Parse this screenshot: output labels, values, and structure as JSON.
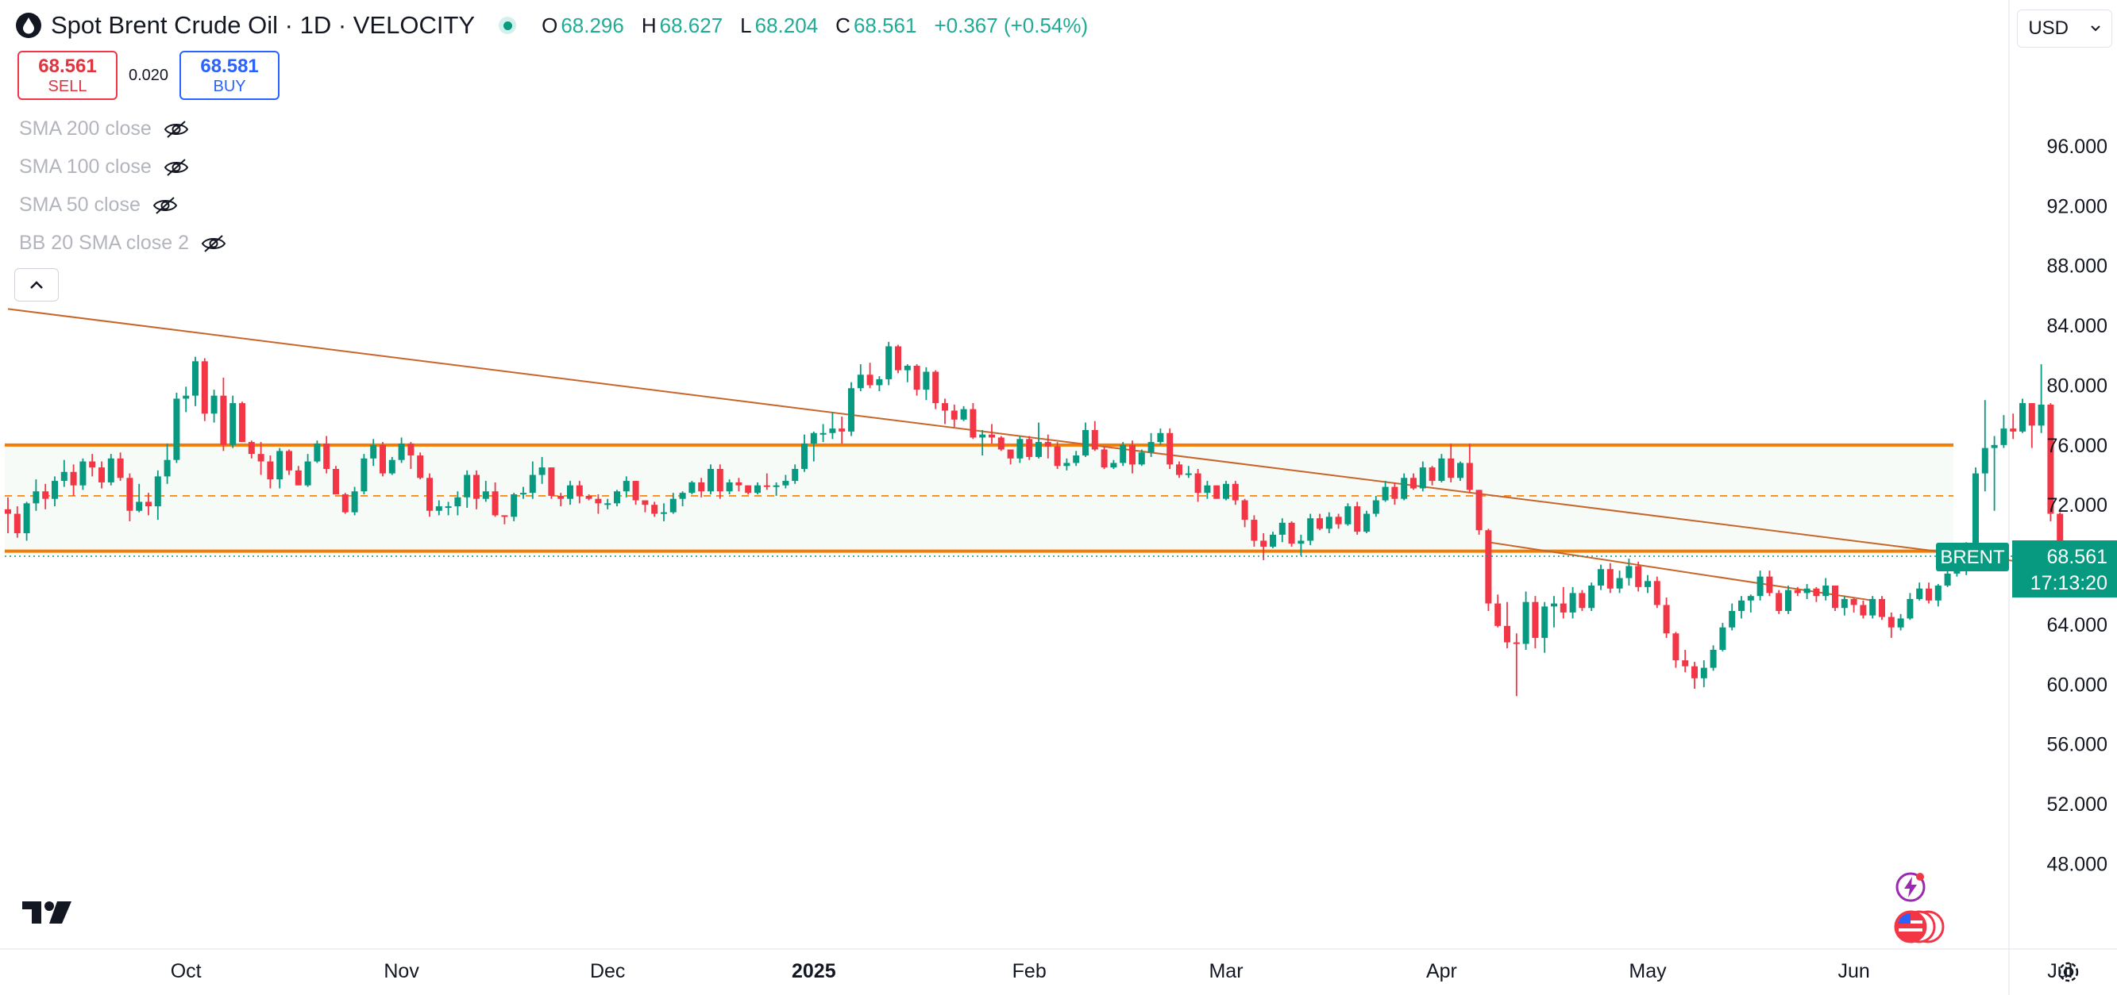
{
  "header": {
    "title": "Spot Brent Crude Oil · 1D · VELOCITY",
    "symbol_icon": "oil-drop-icon",
    "ohlc": [
      {
        "key": "O",
        "value": "68.296"
      },
      {
        "key": "H",
        "value": "68.627"
      },
      {
        "key": "L",
        "value": "68.204"
      },
      {
        "key": "C",
        "value": "68.561"
      }
    ],
    "change": "+0.367 (+0.54%)"
  },
  "trade": {
    "sell_price": "68.561",
    "sell_label": "SELL",
    "spread": "0.020",
    "buy_price": "68.581",
    "buy_label": "BUY"
  },
  "indicators": [
    "SMA 200 close",
    "SMA 100 close",
    "SMA 50 close",
    "BB 20 SMA close 2"
  ],
  "currency": "USD",
  "colors": {
    "up": "#089981",
    "down": "#f23645",
    "accent_line": "#f57c00",
    "trend_line": "#c8652a",
    "axis_text": "#131722"
  },
  "chart_data": {
    "type": "candlestick",
    "y_axis": {
      "ticks": [
        "48.000",
        "52.000",
        "56.000",
        "60.000",
        "64.000",
        "68.000",
        "72.000",
        "76.000",
        "80.000",
        "84.000",
        "88.000",
        "92.000",
        "96.000"
      ],
      "range": [
        45,
        99.5
      ]
    },
    "x_axis": {
      "ticks": [
        {
          "label": "Oct",
          "x_index": 19,
          "bold": false
        },
        {
          "label": "Nov",
          "x_index": 42,
          "bold": false
        },
        {
          "label": "Dec",
          "x_index": 64,
          "bold": false
        },
        {
          "label": "2025",
          "x_index": 86,
          "bold": true
        },
        {
          "label": "Feb",
          "x_index": 109,
          "bold": false
        },
        {
          "label": "Mar",
          "x_index": 130,
          "bold": false
        },
        {
          "label": "Apr",
          "x_index": 153,
          "bold": false
        },
        {
          "label": "May",
          "x_index": 175,
          "bold": false
        },
        {
          "label": "Jun",
          "x_index": 197,
          "bold": false
        },
        {
          "label": "Jul",
          "x_index": 219,
          "bold": false
        }
      ]
    },
    "last_price_label": {
      "symbol": "BRENT",
      "price": "68.561",
      "countdown": "17:13:20"
    },
    "horizontal_levels": [
      {
        "price": 76.0,
        "style": "solid"
      },
      {
        "price": 72.6,
        "style": "dashed"
      },
      {
        "price": 68.9,
        "style": "solid"
      }
    ],
    "trend_lines": [
      {
        "from": [
          0,
          85.1
        ],
        "to": [
          235,
          66.6
        ]
      },
      {
        "from": [
          158,
          69.5
        ],
        "to": [
          199,
          65.6
        ]
      }
    ],
    "candles": [
      [
        71.7,
        72.5,
        70.1,
        71.4
      ],
      [
        71.4,
        71.9,
        69.8,
        70.1
      ],
      [
        70.1,
        72.2,
        69.6,
        72.1
      ],
      [
        72.1,
        73.7,
        71.6,
        72.9
      ],
      [
        72.9,
        73.4,
        71.7,
        72.4
      ],
      [
        72.4,
        73.9,
        71.9,
        73.6
      ],
      [
        73.6,
        75.0,
        73.2,
        74.2
      ],
      [
        74.2,
        74.7,
        72.6,
        73.3
      ],
      [
        73.3,
        75.1,
        73.0,
        74.9
      ],
      [
        74.9,
        75.4,
        73.9,
        74.5
      ],
      [
        74.5,
        74.9,
        73.1,
        73.5
      ],
      [
        73.5,
        75.4,
        73.3,
        75.1
      ],
      [
        75.1,
        75.5,
        73.6,
        73.8
      ],
      [
        73.8,
        74.1,
        70.9,
        71.6
      ],
      [
        71.6,
        73.4,
        71.5,
        72.2
      ],
      [
        72.2,
        72.8,
        71.3,
        71.9
      ],
      [
        71.9,
        74.3,
        71.0,
        73.9
      ],
      [
        73.9,
        76.1,
        73.4,
        75.0
      ],
      [
        75.0,
        79.5,
        74.8,
        79.1
      ],
      [
        79.1,
        79.9,
        78.2,
        79.3
      ],
      [
        79.3,
        81.9,
        78.6,
        81.6
      ],
      [
        81.6,
        81.8,
        77.6,
        78.1
      ],
      [
        78.1,
        79.7,
        77.5,
        79.3
      ],
      [
        79.3,
        80.5,
        75.6,
        76.0
      ],
      [
        76.0,
        79.3,
        75.8,
        78.8
      ],
      [
        78.8,
        78.9,
        76.2,
        76.2
      ],
      [
        76.2,
        76.3,
        75.1,
        75.4
      ],
      [
        75.4,
        76.2,
        74.0,
        74.9
      ],
      [
        74.9,
        75.3,
        73.1,
        73.7
      ],
      [
        73.7,
        75.8,
        73.1,
        75.6
      ],
      [
        75.6,
        75.7,
        74.0,
        74.3
      ],
      [
        74.3,
        74.6,
        73.3,
        73.3
      ],
      [
        73.3,
        75.4,
        73.2,
        74.9
      ],
      [
        74.9,
        76.3,
        74.8,
        76.1
      ],
      [
        76.1,
        76.6,
        74.1,
        74.4
      ],
      [
        74.4,
        74.6,
        72.7,
        72.7
      ],
      [
        72.7,
        72.8,
        71.4,
        71.5
      ],
      [
        71.5,
        73.2,
        71.3,
        72.9
      ],
      [
        72.9,
        75.4,
        72.7,
        75.1
      ],
      [
        75.1,
        76.4,
        74.6,
        76.0
      ],
      [
        76.0,
        76.2,
        73.9,
        74.1
      ],
      [
        74.1,
        75.2,
        74.0,
        75.0
      ],
      [
        75.0,
        76.5,
        74.8,
        76.1
      ],
      [
        76.1,
        76.2,
        74.4,
        75.3
      ],
      [
        75.3,
        75.5,
        73.7,
        73.8
      ],
      [
        73.8,
        74.1,
        71.2,
        71.6
      ],
      [
        71.6,
        72.3,
        71.3,
        71.9
      ],
      [
        71.9,
        72.2,
        71.3,
        71.9
      ],
      [
        71.9,
        72.9,
        71.3,
        72.5
      ],
      [
        72.5,
        74.3,
        71.8,
        74.0
      ],
      [
        74.0,
        74.3,
        71.7,
        72.4
      ],
      [
        72.4,
        73.6,
        72.2,
        72.9
      ],
      [
        72.9,
        73.5,
        71.2,
        71.3
      ],
      [
        71.3,
        71.3,
        70.7,
        71.2
      ],
      [
        71.2,
        72.8,
        70.9,
        72.7
      ],
      [
        72.7,
        73.2,
        72.4,
        72.8
      ],
      [
        72.8,
        74.9,
        72.4,
        74.0
      ],
      [
        74.0,
        75.2,
        73.4,
        74.5
      ],
      [
        74.5,
        74.5,
        72.4,
        72.6
      ],
      [
        72.6,
        72.8,
        71.9,
        72.4
      ],
      [
        72.4,
        73.6,
        72.0,
        73.3
      ],
      [
        73.3,
        73.6,
        72.1,
        72.6
      ],
      [
        72.6,
        72.7,
        72.3,
        72.4
      ],
      [
        72.4,
        72.7,
        71.4,
        72.1
      ],
      [
        72.1,
        72.4,
        71.7,
        72.1
      ],
      [
        72.1,
        73.0,
        71.9,
        72.9
      ],
      [
        72.9,
        73.9,
        72.5,
        73.6
      ],
      [
        73.6,
        73.6,
        72.0,
        72.3
      ],
      [
        72.3,
        72.3,
        71.5,
        72.0
      ],
      [
        72.0,
        72.2,
        71.2,
        71.4
      ],
      [
        71.4,
        72.1,
        70.9,
        71.5
      ],
      [
        71.5,
        72.8,
        71.4,
        72.4
      ],
      [
        72.4,
        72.9,
        71.9,
        72.8
      ],
      [
        72.8,
        73.6,
        72.7,
        73.5
      ],
      [
        73.5,
        73.8,
        72.5,
        72.9
      ],
      [
        72.9,
        74.7,
        72.7,
        74.4
      ],
      [
        74.4,
        74.7,
        72.4,
        72.9
      ],
      [
        72.9,
        73.7,
        72.7,
        73.5
      ],
      [
        73.5,
        73.8,
        72.9,
        73.3
      ],
      [
        73.3,
        73.3,
        72.7,
        72.8
      ],
      [
        72.8,
        73.5,
        72.7,
        73.3
      ],
      [
        73.3,
        74.1,
        73.0,
        73.2
      ],
      [
        73.2,
        73.5,
        72.6,
        73.3
      ],
      [
        73.3,
        74.0,
        73.1,
        73.6
      ],
      [
        73.6,
        74.7,
        73.4,
        74.4
      ],
      [
        74.4,
        76.7,
        74.2,
        76.1
      ],
      [
        76.1,
        76.9,
        74.9,
        76.8
      ],
      [
        76.8,
        77.4,
        76.2,
        76.8
      ],
      [
        76.8,
        78.2,
        76.4,
        77.1
      ],
      [
        77.1,
        77.9,
        76.1,
        76.9
      ],
      [
        76.9,
        80.2,
        76.6,
        79.8
      ],
      [
        79.8,
        81.4,
        79.6,
        80.7
      ],
      [
        80.7,
        81.5,
        79.8,
        80.0
      ],
      [
        80.0,
        80.6,
        79.6,
        80.4
      ],
      [
        80.4,
        82.9,
        80.0,
        82.6
      ],
      [
        82.6,
        82.7,
        80.8,
        81.0
      ],
      [
        81.0,
        81.4,
        80.2,
        81.3
      ],
      [
        81.3,
        81.4,
        79.3,
        79.7
      ],
      [
        79.7,
        81.2,
        79.0,
        80.9
      ],
      [
        80.9,
        81.0,
        78.4,
        78.8
      ],
      [
        78.8,
        79.1,
        77.4,
        78.3
      ],
      [
        78.3,
        78.7,
        77.2,
        77.7
      ],
      [
        77.7,
        78.6,
        77.6,
        78.4
      ],
      [
        78.4,
        78.8,
        76.4,
        76.5
      ],
      [
        76.5,
        77.0,
        75.3,
        76.7
      ],
      [
        76.7,
        77.4,
        76.1,
        76.5
      ],
      [
        76.5,
        76.6,
        75.6,
        75.7
      ],
      [
        75.7,
        75.7,
        74.7,
        75.1
      ],
      [
        75.1,
        76.6,
        74.8,
        76.4
      ],
      [
        76.4,
        76.6,
        75.0,
        75.2
      ],
      [
        75.2,
        77.5,
        75.1,
        76.2
      ],
      [
        76.2,
        76.7,
        75.1,
        75.9
      ],
      [
        75.9,
        76.2,
        74.4,
        74.6
      ],
      [
        74.6,
        75.1,
        74.3,
        74.8
      ],
      [
        74.8,
        75.6,
        74.6,
        75.3
      ],
      [
        75.3,
        77.5,
        75.2,
        77.0
      ],
      [
        77.0,
        77.6,
        75.6,
        75.7
      ],
      [
        75.7,
        75.9,
        74.4,
        74.5
      ],
      [
        74.5,
        75.0,
        74.4,
        74.8
      ],
      [
        74.8,
        76.2,
        74.6,
        76.0
      ],
      [
        76.0,
        76.3,
        74.1,
        74.7
      ],
      [
        74.7,
        75.7,
        74.6,
        75.5
      ],
      [
        75.5,
        76.8,
        75.2,
        76.2
      ],
      [
        76.2,
        77.1,
        76.0,
        76.8
      ],
      [
        76.8,
        77.1,
        74.4,
        74.7
      ],
      [
        74.7,
        74.9,
        73.8,
        74.0
      ],
      [
        74.0,
        74.6,
        73.8,
        74.1
      ],
      [
        74.1,
        74.4,
        72.2,
        72.8
      ],
      [
        72.8,
        73.6,
        72.4,
        73.3
      ],
      [
        73.3,
        73.3,
        72.4,
        72.4
      ],
      [
        72.4,
        73.6,
        72.3,
        73.4
      ],
      [
        73.4,
        73.6,
        72.0,
        72.3
      ],
      [
        72.3,
        72.4,
        70.5,
        71.0
      ],
      [
        71.0,
        71.3,
        69.2,
        69.6
      ],
      [
        69.6,
        70.1,
        68.3,
        69.2
      ],
      [
        69.2,
        70.2,
        69.1,
        70.0
      ],
      [
        70.0,
        71.1,
        69.5,
        70.8
      ],
      [
        70.8,
        70.9,
        69.2,
        69.4
      ],
      [
        69.4,
        70.0,
        68.6,
        69.6
      ],
      [
        69.6,
        71.4,
        69.3,
        71.1
      ],
      [
        71.1,
        71.4,
        70.3,
        70.4
      ],
      [
        70.4,
        71.5,
        70.1,
        71.2
      ],
      [
        71.2,
        71.4,
        70.4,
        70.7
      ],
      [
        70.7,
        72.1,
        70.6,
        71.9
      ],
      [
        71.9,
        72.2,
        70.0,
        70.2
      ],
      [
        70.2,
        71.6,
        70.1,
        71.4
      ],
      [
        71.4,
        72.6,
        71.2,
        72.3
      ],
      [
        72.3,
        73.6,
        72.2,
        73.2
      ],
      [
        73.2,
        73.5,
        72.0,
        72.4
      ],
      [
        72.4,
        74.1,
        72.3,
        73.8
      ],
      [
        73.8,
        74.1,
        73.0,
        73.1
      ],
      [
        73.1,
        74.9,
        72.9,
        74.5
      ],
      [
        74.5,
        74.6,
        73.3,
        73.6
      ],
      [
        73.6,
        75.4,
        73.5,
        75.1
      ],
      [
        75.1,
        76.1,
        73.5,
        73.8
      ],
      [
        73.8,
        74.9,
        73.6,
        74.8
      ],
      [
        74.8,
        76.1,
        72.8,
        73.0
      ],
      [
        73.0,
        73.0,
        70.0,
        70.3
      ],
      [
        70.3,
        70.4,
        64.9,
        65.4
      ],
      [
        65.4,
        66.0,
        63.8,
        63.9
      ],
      [
        63.9,
        65.5,
        62.4,
        62.8
      ],
      [
        62.8,
        63.4,
        59.2,
        62.7
      ],
      [
        62.7,
        66.2,
        62.3,
        65.5
      ],
      [
        65.5,
        65.9,
        62.4,
        63.1
      ],
      [
        63.1,
        65.5,
        62.1,
        65.2
      ],
      [
        65.2,
        65.9,
        63.8,
        65.4
      ],
      [
        65.4,
        66.5,
        64.4,
        64.8
      ],
      [
        64.8,
        66.5,
        64.4,
        66.1
      ],
      [
        66.1,
        66.3,
        64.9,
        65.1
      ],
      [
        65.1,
        66.8,
        64.9,
        66.6
      ],
      [
        66.6,
        68.0,
        66.3,
        67.7
      ],
      [
        67.7,
        68.1,
        66.1,
        66.4
      ],
      [
        66.4,
        67.6,
        66.1,
        67.1
      ],
      [
        67.1,
        68.4,
        66.6,
        67.9
      ],
      [
        67.9,
        68.2,
        66.2,
        66.5
      ],
      [
        66.5,
        67.3,
        66.1,
        66.9
      ],
      [
        66.9,
        67.2,
        65.1,
        65.3
      ],
      [
        65.3,
        65.8,
        63.1,
        63.4
      ],
      [
        63.4,
        63.5,
        61.1,
        61.6
      ],
      [
        61.6,
        62.3,
        60.8,
        61.2
      ],
      [
        61.2,
        61.5,
        59.7,
        60.4
      ],
      [
        60.4,
        61.6,
        59.8,
        61.1
      ],
      [
        61.1,
        62.6,
        60.9,
        62.3
      ],
      [
        62.3,
        64.1,
        62.2,
        63.8
      ],
      [
        63.8,
        65.4,
        63.6,
        64.9
      ],
      [
        64.9,
        65.9,
        64.4,
        65.6
      ],
      [
        65.6,
        66.0,
        64.8,
        65.9
      ],
      [
        65.9,
        67.6,
        65.6,
        67.2
      ],
      [
        67.2,
        67.6,
        65.9,
        66.1
      ],
      [
        66.1,
        66.3,
        64.7,
        64.9
      ],
      [
        64.9,
        66.6,
        64.7,
        66.3
      ],
      [
        66.3,
        66.5,
        65.9,
        66.1
      ],
      [
        66.1,
        66.7,
        65.7,
        66.4
      ],
      [
        66.4,
        66.5,
        65.5,
        65.9
      ],
      [
        65.9,
        67.1,
        65.6,
        66.6
      ],
      [
        66.6,
        66.6,
        64.9,
        65.1
      ],
      [
        65.1,
        65.9,
        64.6,
        65.7
      ],
      [
        65.7,
        65.8,
        64.8,
        65.3
      ],
      [
        65.3,
        65.6,
        64.4,
        64.6
      ],
      [
        64.6,
        65.9,
        64.4,
        65.7
      ],
      [
        65.7,
        65.9,
        64.3,
        64.5
      ],
      [
        64.5,
        64.8,
        63.1,
        63.8
      ],
      [
        63.8,
        64.7,
        63.6,
        64.4
      ],
      [
        64.4,
        66.1,
        64.3,
        65.7
      ],
      [
        65.7,
        66.8,
        65.6,
        66.4
      ],
      [
        66.4,
        66.8,
        65.4,
        65.6
      ],
      [
        65.6,
        66.7,
        65.2,
        66.6
      ],
      [
        66.6,
        67.6,
        66.5,
        67.4
      ],
      [
        67.4,
        67.8,
        67.2,
        67.6
      ],
      [
        67.6,
        69.5,
        67.3,
        69.3
      ],
      [
        69.3,
        74.5,
        69.1,
        74.1
      ],
      [
        74.1,
        79.0,
        72.9,
        75.8
      ],
      [
        75.8,
        76.6,
        71.6,
        76.0
      ],
      [
        76.0,
        78.0,
        75.8,
        77.1
      ],
      [
        77.1,
        78.1,
        76.4,
        76.9
      ],
      [
        76.9,
        79.1,
        76.8,
        78.8
      ],
      [
        78.8,
        78.8,
        75.8,
        77.3
      ],
      [
        77.3,
        81.4,
        76.8,
        78.7
      ],
      [
        78.7,
        78.8,
        70.9,
        71.4
      ],
      [
        71.4,
        71.5,
        67.5,
        67.8
      ],
      [
        68.3,
        68.6,
        68.2,
        68.6
      ],
      [
        68.3,
        68.6,
        68.2,
        68.6
      ]
    ]
  }
}
